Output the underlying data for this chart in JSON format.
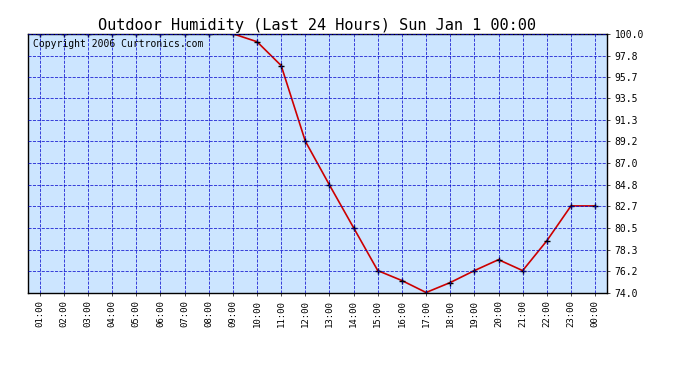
{
  "title": "Outdoor Humidity (Last 24 Hours) Sun Jan 1 00:00",
  "copyright": "Copyright 2006 Curtronics.com",
  "x_labels": [
    "01:00",
    "02:00",
    "03:00",
    "04:00",
    "05:00",
    "06:00",
    "07:00",
    "08:00",
    "09:00",
    "10:00",
    "11:00",
    "12:00",
    "13:00",
    "14:00",
    "15:00",
    "16:00",
    "17:00",
    "18:00",
    "19:00",
    "20:00",
    "21:00",
    "22:00",
    "23:00",
    "00:00"
  ],
  "x_values": [
    1,
    2,
    3,
    4,
    5,
    6,
    7,
    8,
    9,
    10,
    11,
    12,
    13,
    14,
    15,
    16,
    17,
    18,
    19,
    20,
    21,
    22,
    23,
    24
  ],
  "y_values": [
    100.0,
    100.0,
    100.0,
    100.0,
    100.0,
    100.0,
    100.0,
    100.0,
    100.0,
    99.2,
    96.8,
    89.2,
    84.8,
    80.5,
    76.2,
    75.2,
    74.0,
    75.0,
    76.2,
    77.3,
    76.2,
    79.2,
    82.7,
    82.7
  ],
  "ylim": [
    74.0,
    100.0
  ],
  "yticks": [
    74.0,
    76.2,
    78.3,
    80.5,
    82.7,
    84.8,
    87.0,
    89.2,
    91.3,
    93.5,
    95.7,
    97.8,
    100.0
  ],
  "line_color": "#cc0000",
  "marker_color": "#000000",
  "plot_bg_color": "#cce5ff",
  "grid_color": "#0000cc",
  "title_color": "#000000",
  "title_fontsize": 11,
  "copyright_fontsize": 7,
  "border_color": "#000000"
}
